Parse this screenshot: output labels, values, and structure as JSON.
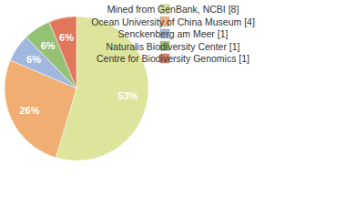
{
  "chart_data": {
    "type": "pie",
    "categories": [
      "Mined from GenBank, NCBI [8]",
      "Ocean University of China Museum [4]",
      "Senckenberg am Meer [1]",
      "Naturalis Biodiversity Center [1]",
      "Centre for Biodiversity Genomics [1]"
    ],
    "values": [
      53,
      26,
      6,
      6,
      6
    ],
    "value_labels": [
      "53%",
      "26%",
      "6%",
      "6%",
      "6%"
    ],
    "colors": [
      "#dde49b",
      "#f0ae73",
      "#a1b8de",
      "#95c175",
      "#e0775d"
    ],
    "data_labels": true,
    "legend": "right"
  }
}
